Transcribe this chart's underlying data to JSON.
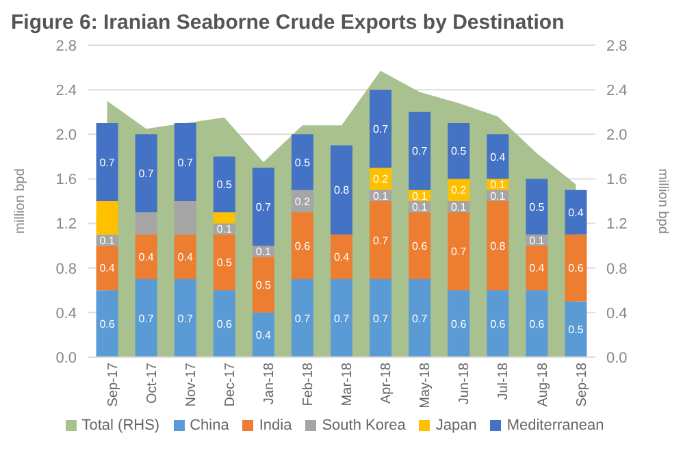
{
  "chart_data": {
    "type": "bar",
    "stacked": true,
    "title": "Figure 6: Iranian Seaborne Crude Exports by Destination",
    "ylabel": "million bpd",
    "y2label": "million bpd",
    "categories": [
      "Sep-17",
      "Oct-17",
      "Nov-17",
      "Dec-17",
      "Jan-18",
      "Feb-18",
      "Mar-18",
      "Apr-18",
      "May-18",
      "Jun-18",
      "Jul-18",
      "Aug-18",
      "Sep-18"
    ],
    "series": [
      {
        "name": "Total (RHS)",
        "type": "area",
        "axis": "y2",
        "color": "#a9c08f",
        "values": [
          2.3,
          2.05,
          2.1,
          2.15,
          1.75,
          2.08,
          2.08,
          2.57,
          2.38,
          2.28,
          2.16,
          1.83,
          1.55
        ]
      },
      {
        "name": "China",
        "color": "#5b9bd5",
        "values": [
          0.6,
          0.7,
          0.7,
          0.6,
          0.4,
          0.7,
          0.7,
          0.7,
          0.7,
          0.6,
          0.6,
          0.6,
          0.5
        ],
        "value_labels": [
          "0.6",
          "0.7",
          "0.7",
          "0.6",
          "0.4",
          "0.7",
          "0.7",
          "0.7",
          "0.7",
          "0.6",
          "0.6",
          "0.6",
          "0.5"
        ]
      },
      {
        "name": "India",
        "color": "#ed7d31",
        "values": [
          0.4,
          0.4,
          0.4,
          0.5,
          0.5,
          0.6,
          0.4,
          0.7,
          0.6,
          0.7,
          0.8,
          0.4,
          0.6
        ],
        "value_labels": [
          "0.4",
          "0.4",
          "0.4",
          "0.5",
          "0.5",
          "0.6",
          "0.4",
          "0.7",
          "0.6",
          "0.7",
          "0.8",
          "0.4",
          "0.6"
        ]
      },
      {
        "name": "South Korea",
        "color": "#a5a5a5",
        "values": [
          0.1,
          0.2,
          0.3,
          0.1,
          0.1,
          0.2,
          null,
          0.1,
          0.1,
          0.1,
          0.1,
          0.1,
          null
        ],
        "value_labels": [
          "0.1",
          null,
          null,
          "0.1",
          "0.1",
          "0.2",
          null,
          "0.1",
          "0.1",
          "0.1",
          "0.1",
          "0.1",
          null
        ]
      },
      {
        "name": "Japan",
        "color": "#ffc000",
        "values": [
          0.3,
          null,
          null,
          0.1,
          null,
          null,
          null,
          0.2,
          0.1,
          0.2,
          0.1,
          null,
          null
        ],
        "value_labels": [
          null,
          null,
          null,
          null,
          null,
          null,
          null,
          "0.2",
          "0.1",
          "0.2",
          "0.1",
          null,
          null
        ]
      },
      {
        "name": "Mediterranean",
        "color": "#4472c4",
        "values": [
          0.7,
          0.7,
          0.7,
          0.5,
          0.7,
          0.5,
          0.8,
          0.7,
          0.7,
          0.5,
          0.4,
          0.5,
          0.4
        ],
        "value_labels": [
          "0.7",
          "0.7",
          "0.7",
          "0.5",
          "0.7",
          "0.5",
          "0.8",
          "0.7",
          "0.7",
          "0.5",
          "0.4",
          "0.5",
          "0.4"
        ]
      }
    ],
    "ylim": [
      0,
      2.8
    ],
    "yticks": [
      {
        "value": 0,
        "label": "0.0"
      },
      0.4,
      0.8,
      1.2,
      1.6,
      {
        "value": 2,
        "label": "2.0"
      },
      2.4,
      2.8
    ],
    "y2lim": [
      0,
      2.8
    ],
    "y2ticks": [
      {
        "value": 0,
        "label": "0.0"
      },
      0.4,
      0.8,
      1.2,
      1.6,
      {
        "value": 2,
        "label": "2.0"
      },
      2.4,
      2.8
    ],
    "grid": "y",
    "legend": "bottom"
  }
}
